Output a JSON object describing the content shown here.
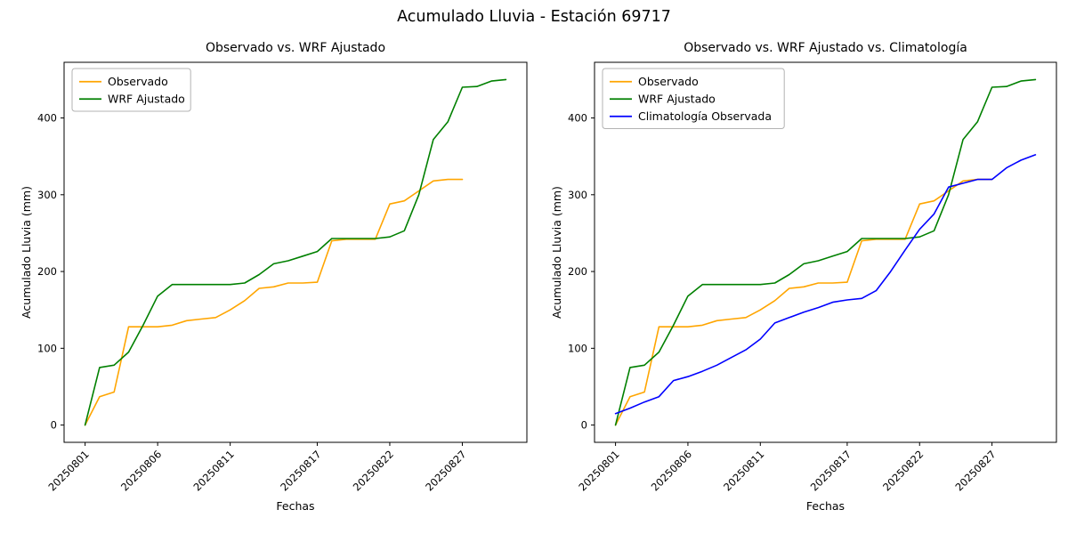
{
  "figure": {
    "suptitle": "Acumulado Lluvia - Estación 69717",
    "background": "#ffffff"
  },
  "chart_data": [
    {
      "type": "line",
      "title": "Observado vs. WRF Ajustado",
      "xlabel": "Fechas",
      "ylabel": "Acumulado Lluvia (mm)",
      "legend_position": "upper-left",
      "grid": false,
      "ylim": [
        -22.5,
        472.5
      ],
      "yticks": [
        0,
        100,
        200,
        300,
        400
      ],
      "x_dates": [
        "20250801",
        "20250802",
        "20250803",
        "20250804",
        "20250805",
        "20250806",
        "20250807",
        "20250808",
        "20250809",
        "20250810",
        "20250811",
        "20250812",
        "20250813",
        "20250814",
        "20250815",
        "20250816",
        "20250817",
        "20250818",
        "20250819",
        "20250820",
        "20250821",
        "20250822",
        "20250823",
        "20250824",
        "20250825",
        "20250826",
        "20250827",
        "20250828",
        "20250829",
        "20250830"
      ],
      "xticks": {
        "positions": [
          0,
          5,
          10,
          16,
          21,
          26
        ],
        "labels": [
          "20250801",
          "20250806",
          "20250811",
          "20250817",
          "20250822",
          "20250827"
        ]
      },
      "series": [
        {
          "name": "Observado",
          "color": "#ffa500",
          "values": [
            0,
            37,
            43,
            128,
            128,
            128,
            130,
            136,
            138,
            140,
            150,
            162,
            178,
            180,
            185,
            185,
            186,
            240,
            242,
            242,
            242,
            288,
            292,
            305,
            318,
            320,
            320
          ]
        },
        {
          "name": "WRF Ajustado",
          "color": "#008000",
          "values": [
            0,
            75,
            78,
            95,
            130,
            168,
            183,
            183,
            183,
            183,
            183,
            185,
            196,
            210,
            214,
            220,
            226,
            243,
            243,
            243,
            243,
            245,
            253,
            300,
            372,
            395,
            440,
            441,
            448,
            450
          ]
        }
      ]
    },
    {
      "type": "line",
      "title": "Observado vs. WRF Ajustado vs. Climatología",
      "xlabel": "Fechas",
      "ylabel": "Acumulado Lluvia (mm)",
      "legend_position": "upper-left",
      "grid": false,
      "ylim": [
        -22.5,
        472.5
      ],
      "yticks": [
        0,
        100,
        200,
        300,
        400
      ],
      "x_dates": [
        "20250801",
        "20250802",
        "20250803",
        "20250804",
        "20250805",
        "20250806",
        "20250807",
        "20250808",
        "20250809",
        "20250810",
        "20250811",
        "20250812",
        "20250813",
        "20250814",
        "20250815",
        "20250816",
        "20250817",
        "20250818",
        "20250819",
        "20250820",
        "20250821",
        "20250822",
        "20250823",
        "20250824",
        "20250825",
        "20250826",
        "20250827",
        "20250828",
        "20250829",
        "20250830"
      ],
      "xticks": {
        "positions": [
          0,
          5,
          10,
          16,
          21,
          26
        ],
        "labels": [
          "20250801",
          "20250806",
          "20250811",
          "20250817",
          "20250822",
          "20250827"
        ]
      },
      "series": [
        {
          "name": "Observado",
          "color": "#ffa500",
          "values": [
            0,
            37,
            43,
            128,
            128,
            128,
            130,
            136,
            138,
            140,
            150,
            162,
            178,
            180,
            185,
            185,
            186,
            240,
            242,
            242,
            242,
            288,
            292,
            305,
            318,
            320,
            320
          ]
        },
        {
          "name": "WRF Ajustado",
          "color": "#008000",
          "values": [
            0,
            75,
            78,
            95,
            130,
            168,
            183,
            183,
            183,
            183,
            183,
            185,
            196,
            210,
            214,
            220,
            226,
            243,
            243,
            243,
            243,
            245,
            253,
            300,
            372,
            395,
            440,
            441,
            448,
            450
          ]
        },
        {
          "name": "Climatología Observada",
          "color": "#0000ff",
          "values": [
            15,
            22,
            30,
            37,
            58,
            63,
            70,
            78,
            88,
            98,
            112,
            133,
            140,
            147,
            153,
            160,
            163,
            165,
            175,
            200,
            228,
            255,
            275,
            310,
            315,
            320,
            320,
            335,
            345,
            352
          ]
        }
      ]
    }
  ]
}
